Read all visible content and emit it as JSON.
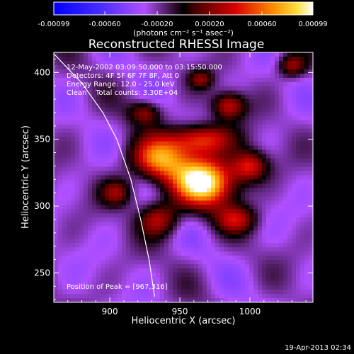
{
  "chart_data": {
    "type": "heatmap",
    "title": "Reconstructed RHESSI Image",
    "xlabel": "Heliocentric X (arcsec)",
    "ylabel": "Heliocentric Y (arcsec)",
    "xlim": [
      860,
      1045
    ],
    "ylim": [
      228,
      415
    ],
    "x_ticks": [
      900,
      950,
      1000
    ],
    "y_ticks": [
      250,
      300,
      350,
      400
    ],
    "colorbar": {
      "min": -0.00099,
      "max": 0.00099,
      "ticks": [
        -0.00099,
        -0.0006,
        -0.0002,
        0.0002,
        0.0006,
        0.00099
      ],
      "tick_labels": [
        "-0.00099",
        "-0.00060",
        "-0.00020",
        "0.00020",
        "0.00060",
        "0.00099"
      ],
      "units": "(photons cm⁻² s⁻¹ asec⁻²)"
    },
    "annotations": [
      "12-May-2002 03:09:50.000 to 03:15:50.000",
      "Detectors: 4F 5F 6F 7F 8F, Att 0",
      "Energy Range: 12.0 - 25.0 keV",
      "Clean    Total counts: 3.30E+04"
    ],
    "peak_label": "Position of Peak = [967,316]",
    "peak": [
      967,
      316
    ],
    "footer_date": "19-Apr-2013 02:34",
    "sources": [
      {
        "x": 967,
        "y": 318,
        "amp": 0.00099,
        "sx": 16,
        "sy": 13
      },
      {
        "x": 935,
        "y": 335,
        "amp": 0.0006,
        "sx": 14,
        "sy": 11
      },
      {
        "x": 965,
        "y": 350,
        "amp": 0.0005,
        "sx": 16,
        "sy": 8
      },
      {
        "x": 1000,
        "y": 330,
        "amp": 0.0004,
        "sx": 9,
        "sy": 8
      },
      {
        "x": 985,
        "y": 375,
        "amp": 0.00035,
        "sx": 8,
        "sy": 7
      },
      {
        "x": 935,
        "y": 290,
        "amp": 0.0003,
        "sx": 10,
        "sy": 9
      },
      {
        "x": 905,
        "y": 310,
        "amp": 0.0002,
        "sx": 8,
        "sy": 7
      },
      {
        "x": 925,
        "y": 370,
        "amp": 0.0002,
        "sx": 8,
        "sy": 6
      },
      {
        "x": 1030,
        "y": 405,
        "amp": 0.00025,
        "sx": 7,
        "sy": 6
      },
      {
        "x": 990,
        "y": 290,
        "amp": 0.00025,
        "sx": 10,
        "sy": 7
      },
      {
        "x": 965,
        "y": 395,
        "amp": 0.00015,
        "sx": 6,
        "sy": 5
      }
    ],
    "background": {
      "level": -0.00025,
      "ripple": 0.00012
    },
    "limb_curve": [
      [
        860,
        414
      ],
      [
        880,
        392
      ],
      [
        895,
        370
      ],
      [
        905,
        350
      ],
      [
        915,
        320
      ],
      [
        922,
        290
      ],
      [
        928,
        260
      ],
      [
        932,
        232
      ]
    ],
    "colors": {
      "background": "#000000",
      "text": "#ffffff",
      "limb": "#ffffff"
    }
  }
}
